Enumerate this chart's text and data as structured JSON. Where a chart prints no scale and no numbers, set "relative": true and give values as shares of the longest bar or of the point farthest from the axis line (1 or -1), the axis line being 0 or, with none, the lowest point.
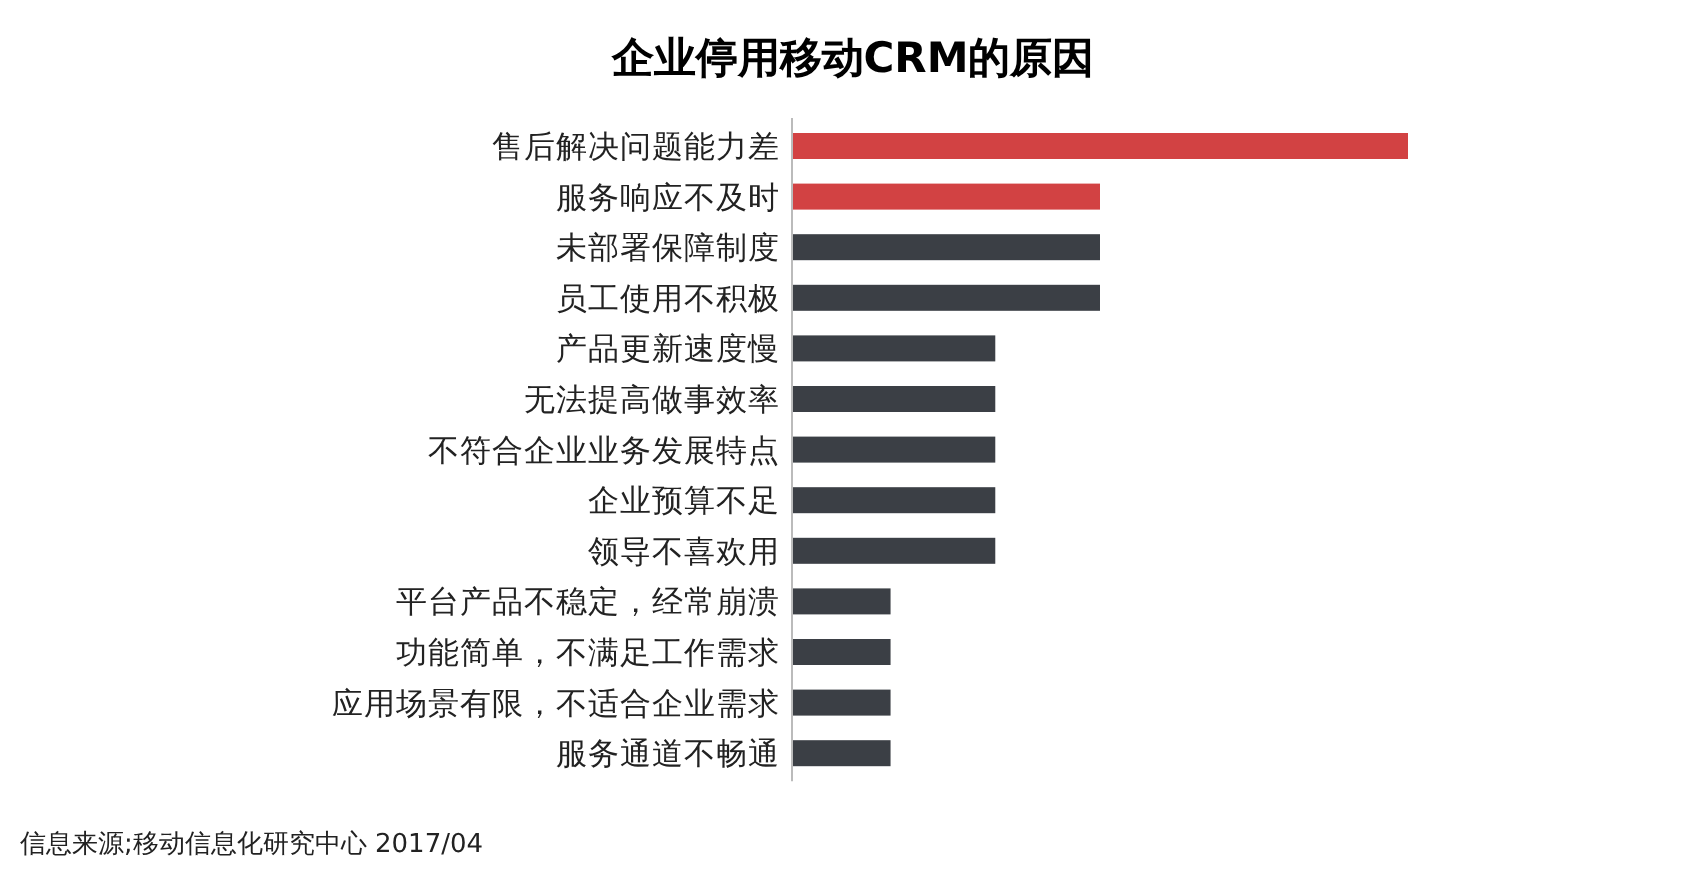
{
  "chart_data": {
    "type": "bar",
    "orientation": "horizontal",
    "relative": true,
    "title": "企业停用移动CRM的原因",
    "categories": [
      "售后解决问题能力差",
      "服务响应不及时",
      "未部署保障制度",
      "员工使用不积极",
      "产品更新速度慢",
      "无法提高做事效率",
      "不符合企业业务发展特点",
      "企业预算不足",
      "领导不喜欢用",
      "平台产品不稳定，经常崩溃",
      "功能简单，不满足工作需求",
      "应用场景有限，不适合企业需求",
      "服务通道不畅通"
    ],
    "values": [
      1,
      0.5,
      0.5,
      0.5,
      0.33,
      0.33,
      0.33,
      0.33,
      0.33,
      0.16,
      0.16,
      0.16,
      0.16
    ],
    "colors": [
      "#d24243",
      "#d24243",
      "#3b3f45",
      "#3b3f45",
      "#3b3f45",
      "#3b3f45",
      "#3b3f45",
      "#3b3f45",
      "#3b3f45",
      "#3b3f45",
      "#3b3f45",
      "#3b3f45",
      "#3b3f45"
    ],
    "annotations": [
      "信息来源;移动信息化研究中心 2017/04"
    ]
  }
}
